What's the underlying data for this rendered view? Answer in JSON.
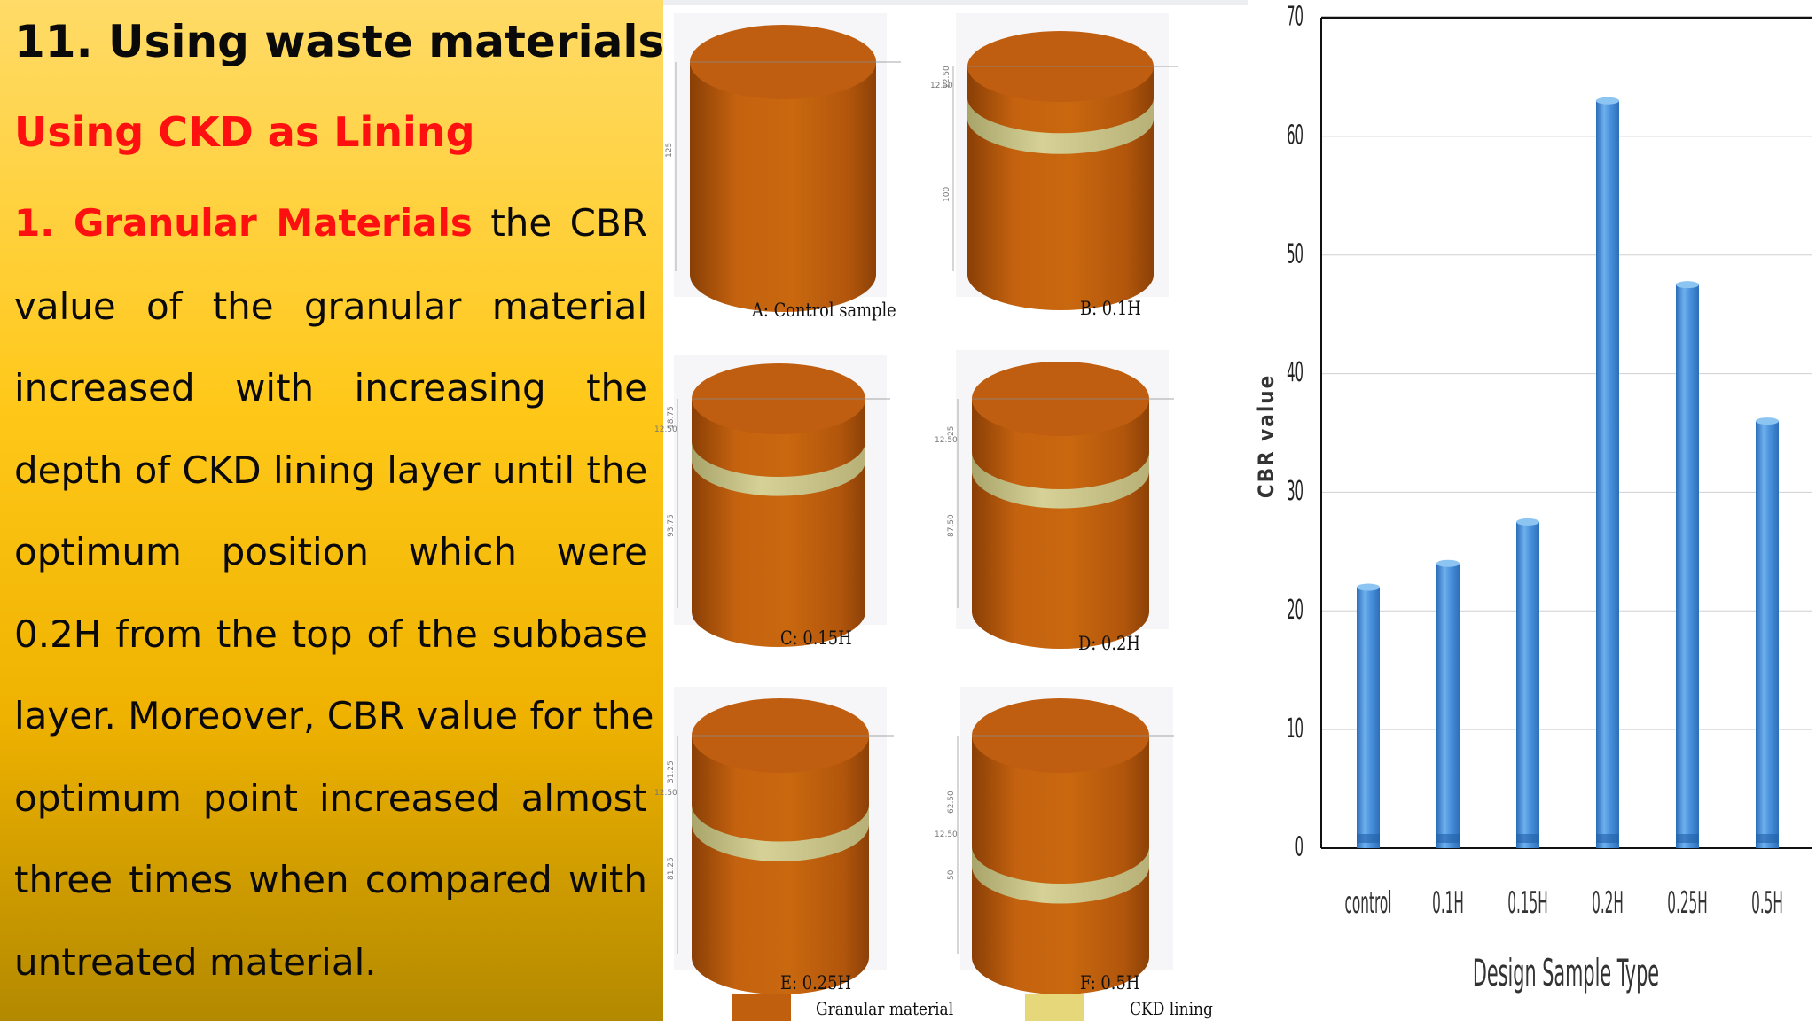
{
  "slide": {
    "heading": "11. Using waste materials:",
    "subheading": "Using CKD as Lining",
    "paragraph": {
      "lead": "1. Granular Materials",
      "lines": [
        " the CBR",
        "value of the granular material",
        "increased with increasing the",
        "depth of CKD lining layer until the",
        "optimum position which were",
        "0.2H from the top of the subbase",
        "layer. Moreover, CBR value for the",
        "optimum point increased almost",
        "three times when compared with",
        "untreated material."
      ]
    }
  },
  "samples": {
    "items": [
      {
        "caption": "A: Control sample",
        "dims": [
          "125"
        ]
      },
      {
        "caption": "B: 0.1H",
        "dims": [
          "12.50",
          "12.50",
          "100"
        ]
      },
      {
        "caption": "C: 0.15H",
        "dims": [
          "18.75",
          "12.50",
          "93.75"
        ]
      },
      {
        "caption": "D: 0.2H",
        "dims": [
          "25",
          "12.50",
          "87.50"
        ]
      },
      {
        "caption": "E: 0.25H",
        "dims": [
          "31.25",
          "12.50",
          "81.25"
        ]
      },
      {
        "caption": "F: 0.5H",
        "dims": [
          "62.50",
          "12.50",
          "50"
        ]
      }
    ],
    "legend": [
      {
        "label": "Granular material",
        "color": "#c0600f"
      },
      {
        "label": "CKD lining",
        "color": "#e6d77a"
      }
    ],
    "colors": {
      "granular": "#c4620f",
      "lining": "#cfc98a"
    }
  },
  "chart_data": {
    "type": "bar",
    "categories": [
      "control",
      "0.1H",
      "0.15H",
      "0.2H",
      "0.25H",
      "0.5H"
    ],
    "values": [
      22,
      24,
      27.5,
      63,
      47.5,
      36
    ],
    "xlabel": "Design Sample Type",
    "ylabel": "CBR value",
    "ylim": [
      0,
      70
    ],
    "yticks": [
      0,
      10,
      20,
      30,
      40,
      50,
      60,
      70
    ],
    "grid": true,
    "bar_color": "#4a90d9"
  }
}
